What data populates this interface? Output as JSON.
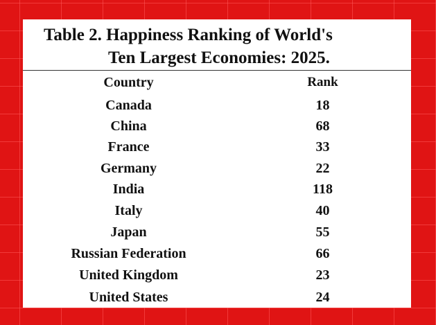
{
  "table": {
    "title_line1": "Table 2. Happiness Ranking of World's",
    "title_line2": "Ten Largest Economies: 2025.",
    "headers": {
      "country": "Country",
      "rank": "Rank"
    },
    "rows": [
      {
        "country": "Canada",
        "rank": "18"
      },
      {
        "country": "China",
        "rank": "68"
      },
      {
        "country": "France",
        "rank": "33"
      },
      {
        "country": "Germany",
        "rank": "22"
      },
      {
        "country": "India",
        "rank": "118"
      },
      {
        "country": "Italy",
        "rank": "40"
      },
      {
        "country": "Japan",
        "rank": "55"
      },
      {
        "country": "Russian Federation",
        "rank": "66"
      },
      {
        "country": "United Kingdom",
        "rank": "23"
      },
      {
        "country": "United States",
        "rank": "24"
      }
    ]
  },
  "colors": {
    "background": "#e01414",
    "panel": "#ffffff",
    "text": "#111111"
  }
}
